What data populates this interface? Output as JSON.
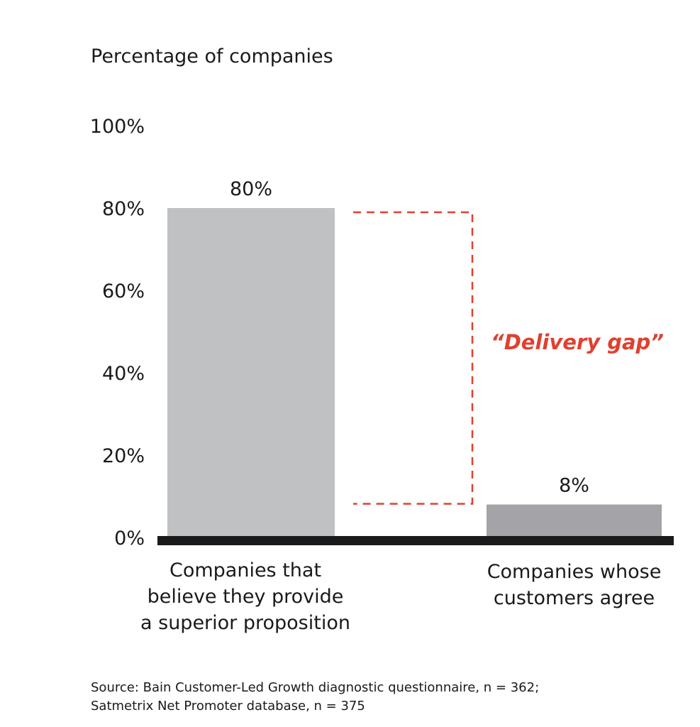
{
  "chart_data": {
    "type": "bar",
    "ylabel": "Percentage of companies",
    "y_ticks": [
      "0%",
      "20%",
      "40%",
      "60%",
      "80%",
      "100%"
    ],
    "y_tick_values": [
      0,
      20,
      40,
      60,
      80,
      100
    ],
    "ylim": [
      0,
      100
    ],
    "grid": false,
    "categories": [
      [
        "Companies that",
        "believe they provide",
        "a superior proposition"
      ],
      [
        "Companies whose",
        "customers agree"
      ]
    ],
    "values": [
      80,
      8
    ],
    "data_labels": [
      "80%",
      "8%"
    ],
    "bar_colors": [
      "#c0c1c3",
      "#a3a3a8"
    ],
    "annotation": {
      "text": "“Delivery gap”",
      "from_value": 80,
      "to_value": 8,
      "color": "#e0402f"
    },
    "source": [
      "Source: Bain Customer-Led Growth diagnostic questionnaire, n = 362;",
      "Satmetrix Net Promoter database, n = 375"
    ]
  }
}
